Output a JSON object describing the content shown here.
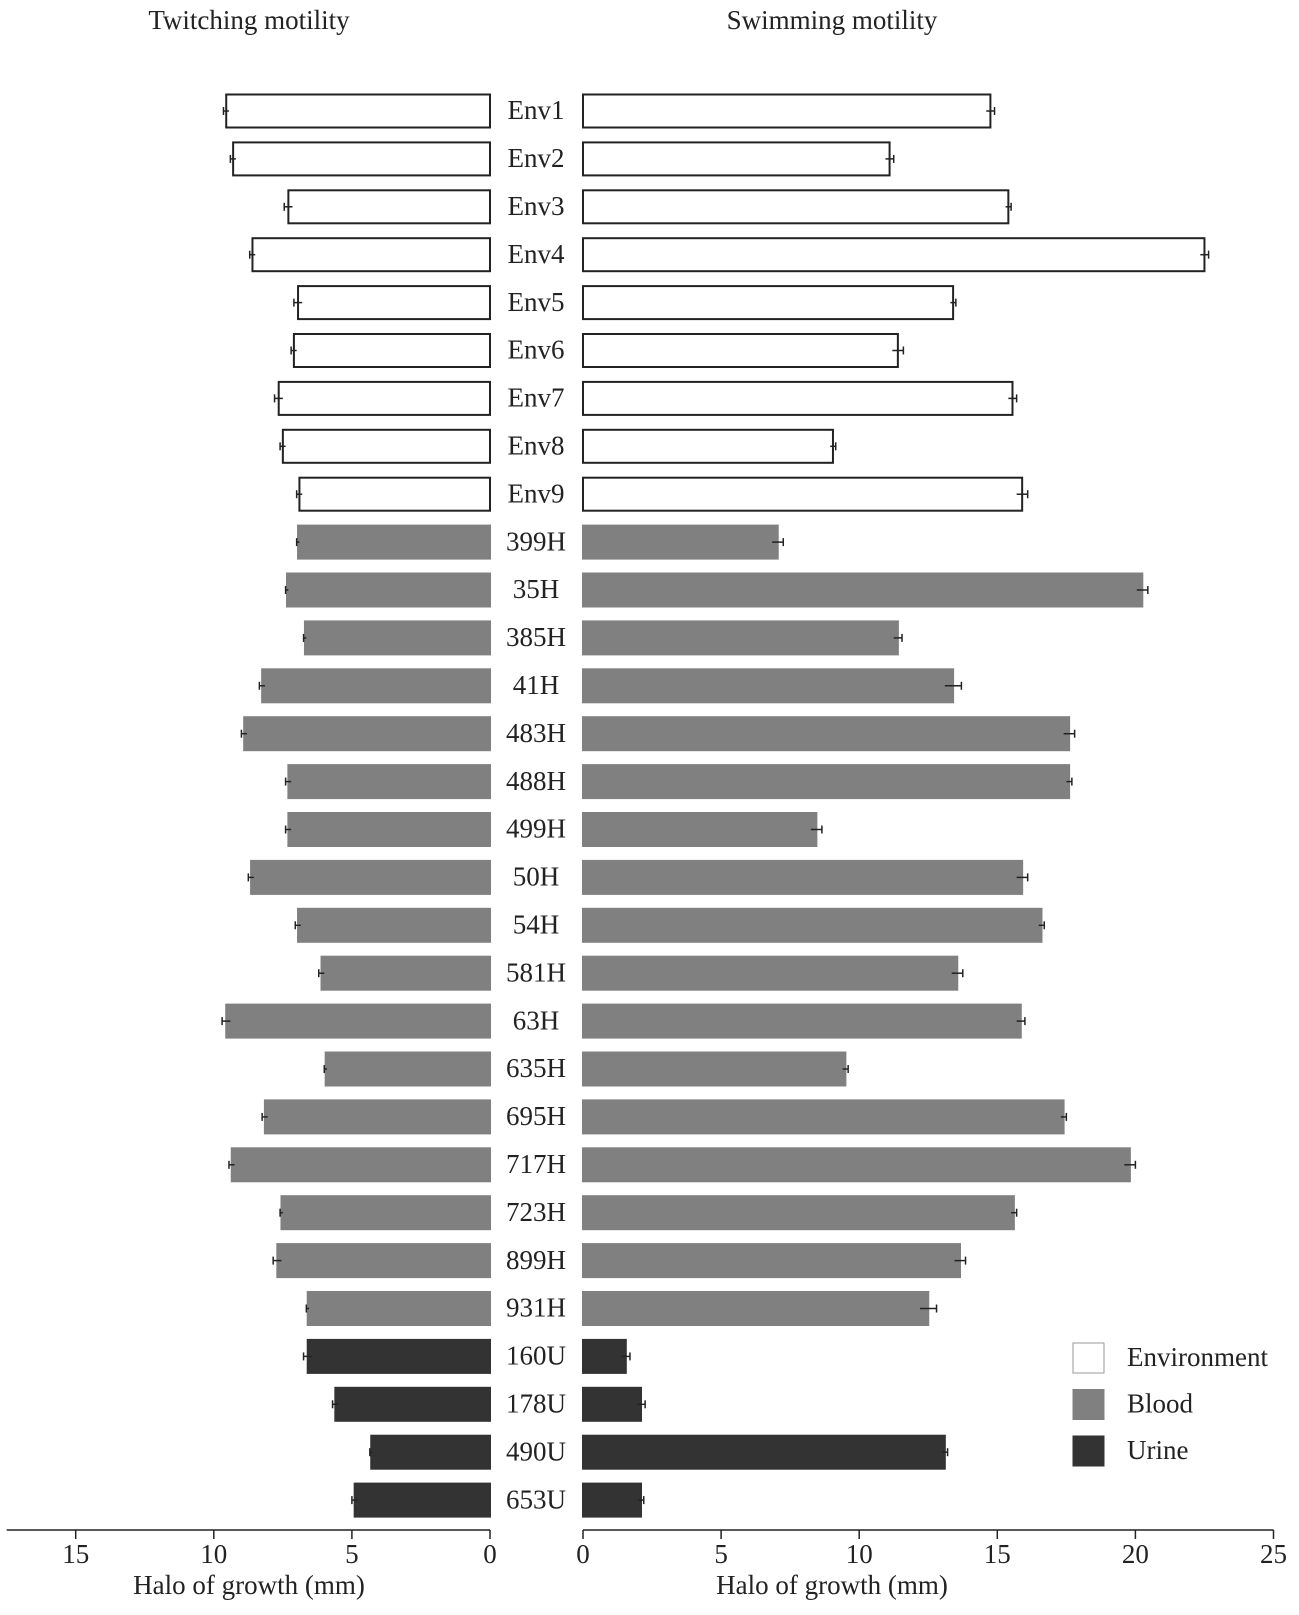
{
  "chart_data": {
    "type": "bar",
    "orientation": "horizontal",
    "groups": [
      {
        "name": "Environment",
        "color": "#ffffff",
        "categories": [
          "Env1",
          "Env2",
          "Env3",
          "Env4",
          "Env5",
          "Env6",
          "Env7",
          "Env8",
          "Env9"
        ]
      },
      {
        "name": "Blood",
        "color": "#808080",
        "categories": [
          "399H",
          "35H",
          "385H",
          "41H",
          "483H",
          "488H",
          "499H",
          "50H",
          "54H",
          "581H",
          "63H",
          "635H",
          "695H",
          "717H",
          "723H",
          "899H",
          "931H"
        ]
      },
      {
        "name": "Urine",
        "color": "#333333",
        "categories": [
          "160U",
          "178U",
          "490U",
          "653U"
        ]
      }
    ],
    "panels": [
      {
        "title": "Twitching motility",
        "xlabel": "Halo of growth (mm)",
        "direction": "left",
        "xlim": [
          0,
          17.5
        ],
        "xticks": [
          0,
          5,
          10,
          15
        ],
        "values": [
          [
            9.55,
            9.3,
            7.3,
            8.6,
            6.95,
            7.1,
            7.65,
            7.5,
            6.9
          ],
          [
            6.95,
            7.35,
            6.7,
            8.25,
            8.9,
            7.3,
            7.3,
            8.65,
            6.95,
            6.1,
            9.55,
            5.95,
            8.15,
            9.35,
            7.55,
            7.7,
            6.6
          ],
          [
            6.6,
            5.6,
            4.3,
            4.9
          ]
        ],
        "errors": [
          [
            0.1,
            0.1,
            0.15,
            0.1,
            0.15,
            0.1,
            0.15,
            0.1,
            0.1
          ],
          [
            0.05,
            0.05,
            0.05,
            0.1,
            0.1,
            0.1,
            0.1,
            0.1,
            0.1,
            0.1,
            0.15,
            0.05,
            0.1,
            0.1,
            0.05,
            0.15,
            0.05
          ],
          [
            0.15,
            0.1,
            0.05,
            0.1
          ]
        ]
      },
      {
        "title": "Swimming motility",
        "xlabel": "Halo of growth (mm)",
        "direction": "right",
        "xlim": [
          0,
          25
        ],
        "xticks": [
          0,
          5,
          10,
          15,
          20,
          25
        ],
        "values": [
          [
            14.75,
            11.1,
            15.4,
            22.5,
            13.4,
            11.4,
            15.55,
            9.05,
            15.9
          ],
          [
            7.05,
            20.25,
            11.4,
            13.4,
            17.6,
            17.6,
            8.45,
            15.9,
            16.6,
            13.55,
            15.85,
            9.5,
            17.4,
            19.8,
            15.6,
            13.65,
            12.5
          ],
          [
            1.55,
            2.1,
            13.1,
            2.1
          ]
        ],
        "errors": [
          [
            0.15,
            0.15,
            0.1,
            0.15,
            0.1,
            0.2,
            0.15,
            0.1,
            0.2
          ],
          [
            0.2,
            0.2,
            0.15,
            0.3,
            0.2,
            0.1,
            0.2,
            0.2,
            0.1,
            0.2,
            0.15,
            0.1,
            0.1,
            0.2,
            0.1,
            0.2,
            0.3
          ],
          [
            0.15,
            0.15,
            0.1,
            0.1
          ]
        ]
      }
    ]
  }
}
